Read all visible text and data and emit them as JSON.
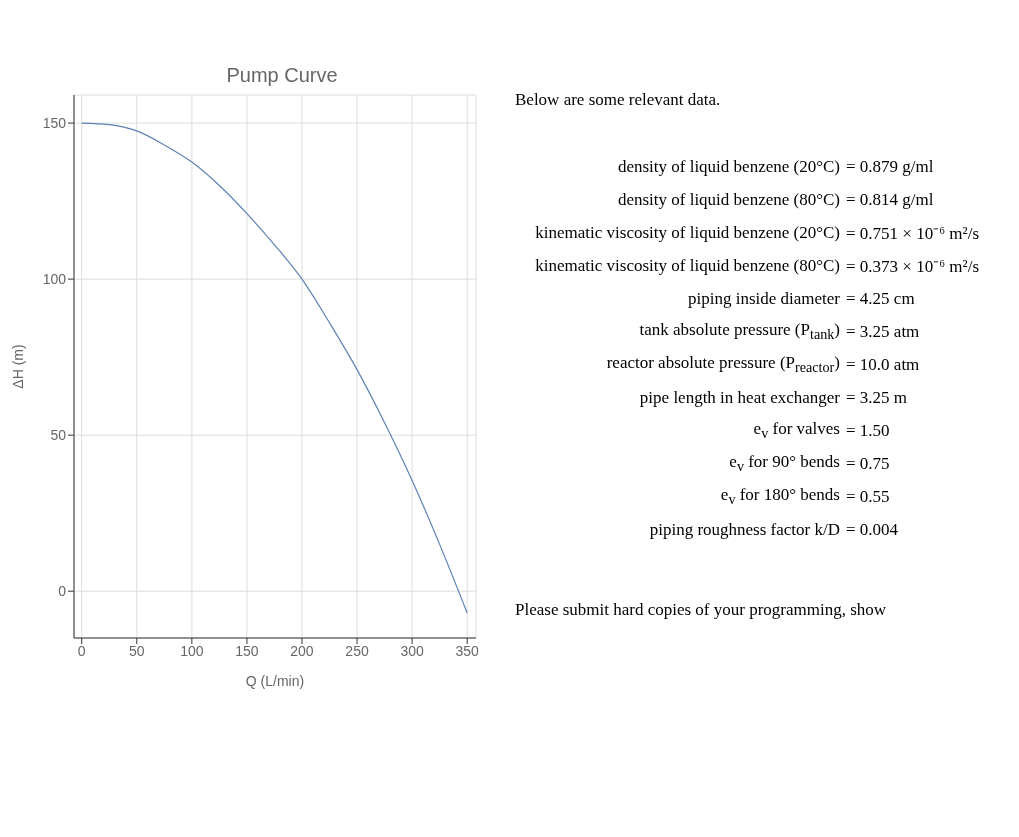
{
  "chart_data": {
    "type": "line",
    "title": "Pump Curve",
    "xlabel": "Q (L/min)",
    "ylabel": "ΔH (m)",
    "x": [
      0,
      25,
      50,
      75,
      100,
      125,
      150,
      175,
      200,
      225,
      250,
      275,
      300,
      325,
      350
    ],
    "series": [
      {
        "color": "#5e81b5",
        "values": [
          150,
          149.5,
          147.5,
          143,
          137.5,
          130,
          121,
          111,
          100,
          86,
          71,
          54,
          35.5,
          15,
          -7
        ]
      }
    ],
    "xlim": [
      -7,
      358
    ],
    "ylim": [
      -15,
      159
    ],
    "xticks": [
      0,
      50,
      100,
      150,
      200,
      250,
      300,
      350
    ],
    "yticks": [
      0,
      50,
      100,
      150
    ],
    "grid": true,
    "marker": "none",
    "line_style": "solid",
    "annotations": [
      "Below are some relevant data.",
      "density of liquid benzene (20°C) = 0.879 g/ml",
      "density of liquid benzene (80°C) = 0.814 g/ml",
      "kinematic viscosity of liquid benzene (20°C) = 0.751 × 10⁻⁶ m²/s",
      "kinematic viscosity of liquid benzene (80°C) = 0.373 × 10⁻⁶ m²/s",
      "piping inside diameter = 4.25 cm",
      "tank absolute pressure (P$_{tank}$) = 3.25 atm",
      "reactor absolute pressure (P$_{reactor}$) = 10.0 atm",
      "pipe length in heat exchanger = 3.25 m",
      "e$_{v}$ for valves = 1.50",
      "e$_{v}$ for 90° bends = 0.75",
      "e$_{v}$ for 180° bends = 0.55",
      "piping roughness factor k/D = 0.004",
      "Please submit hard copies of your programming, show"
    ]
  }
}
